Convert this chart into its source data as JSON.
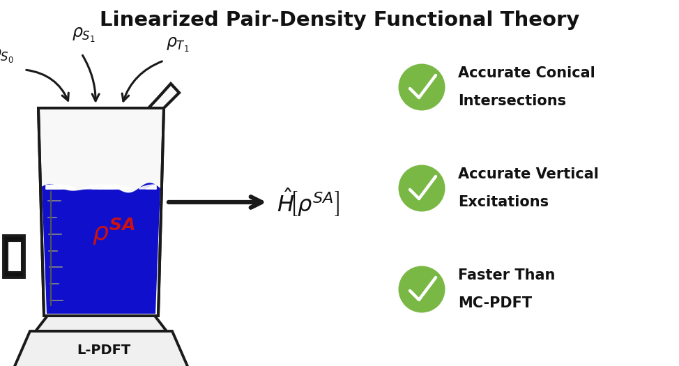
{
  "title": "Linearized Pair-Density Functional Theory",
  "title_fontsize": 21,
  "title_fontweight": "bold",
  "bg_color": "#ffffff",
  "outline_color": "#1a1a1a",
  "glass_fill": "#ffffff",
  "water_color": "#1010cc",
  "water_top_color": "#2233ee",
  "rho_sa_color": "#cc1111",
  "arrow_color": "#111111",
  "checkmark_bg": "#7ab845",
  "checkmark_color": "#ffffff",
  "bullet1_line1": "Accurate Conical",
  "bullet1_line2": "Intersections",
  "bullet2_line1": "Accurate Vertical",
  "bullet2_line2": "Excitations",
  "bullet3_line1": "Faster Than",
  "bullet3_line2": "MC-PDFT",
  "lpdft_label": "L-PDFT",
  "bullet_fontsize": 15,
  "bullet_fontweight": "bold",
  "check_fontsize": 18
}
